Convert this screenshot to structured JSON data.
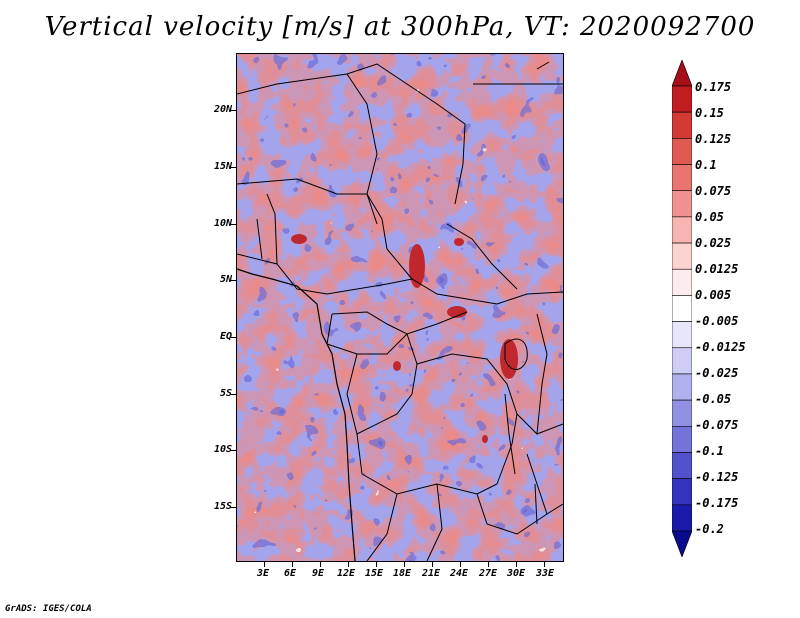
{
  "title": "Vertical velocity [m/s] at 300hPa, VT: 2020092700",
  "credit": "GrADS: IGES/COLA",
  "lat_labels": [
    "20N",
    "15N",
    "10N",
    "5N",
    "EQ",
    "5S",
    "10S",
    "15S"
  ],
  "lon_labels": [
    "3E",
    "6E",
    "9E",
    "12E",
    "15E",
    "18E",
    "21E",
    "24E",
    "27E",
    "30E",
    "33E"
  ],
  "colorbar": {
    "labels": [
      "0.175",
      "0.15",
      "0.125",
      "0.1",
      "0.075",
      "0.05",
      "0.025",
      "0.0125",
      "0.005",
      "-0.005",
      "-0.0125",
      "-0.025",
      "-0.05",
      "-0.075",
      "-0.1",
      "-0.125",
      "-0.175",
      "-0.2"
    ],
    "colors": [
      "#a50f15",
      "#bf1d22",
      "#d33a36",
      "#e05a54",
      "#e87570",
      "#f09390",
      "#f6b5b0",
      "#fbd3cf",
      "#fdeceb",
      "#ffffff",
      "#e7e7fb",
      "#cdcdf5",
      "#b1b1ee",
      "#9191e4",
      "#7373da",
      "#5252cc",
      "#3333bd",
      "#1919ab",
      "#0a0a8f"
    ]
  },
  "map_colors": {
    "positive_strong": "#c0282e",
    "positive_mid": "#ee8a85",
    "positive_light": "#f8c9c5",
    "negative_light": "#d6d6f6",
    "negative_mid": "#a4a4ec",
    "negative_strong": "#6c6cd6"
  }
}
